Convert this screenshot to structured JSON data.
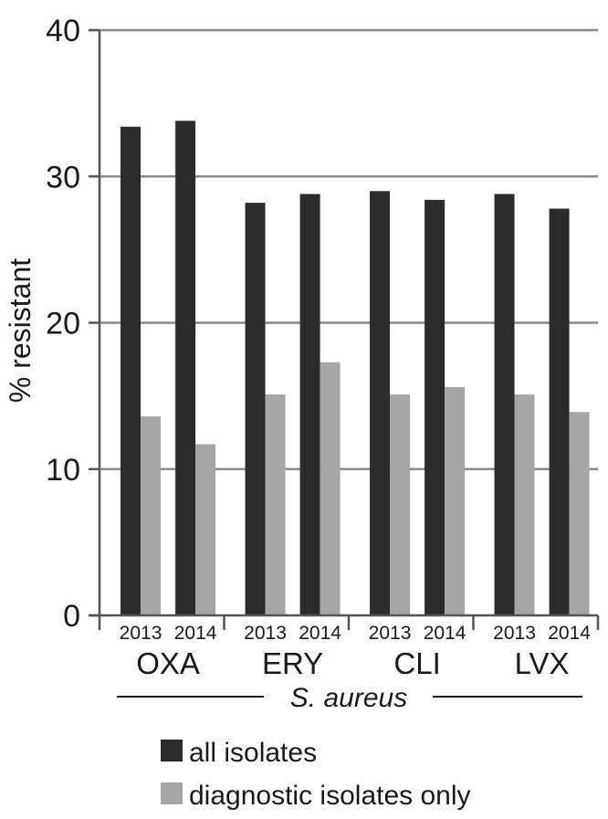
{
  "chart_data": {
    "type": "bar",
    "ylabel": "% resistant",
    "ylim": [
      0,
      40
    ],
    "yticks": [
      "0",
      "10",
      "20",
      "30",
      "40"
    ],
    "grid": true,
    "groups": [
      {
        "label": "OXA",
        "years": [
          "2013",
          "2014"
        ]
      },
      {
        "label": "ERY",
        "years": [
          "2013",
          "2014"
        ]
      },
      {
        "label": "CLI",
        "years": [
          "2013",
          "2014"
        ]
      },
      {
        "label": "LVX",
        "years": [
          "2013",
          "2014"
        ]
      }
    ],
    "species_label": "S. aureus",
    "series": [
      {
        "name": "all isolates",
        "color": "#2b2b2b",
        "values": [
          33.4,
          33.8,
          28.2,
          28.8,
          29.0,
          28.4,
          28.8,
          27.8
        ]
      },
      {
        "name": "diagnostic isolates only",
        "color": "#a6a6a6",
        "values": [
          13.6,
          11.7,
          15.1,
          17.3,
          15.1,
          15.6,
          15.1,
          13.9
        ]
      }
    ],
    "legend_position": "bottom"
  }
}
